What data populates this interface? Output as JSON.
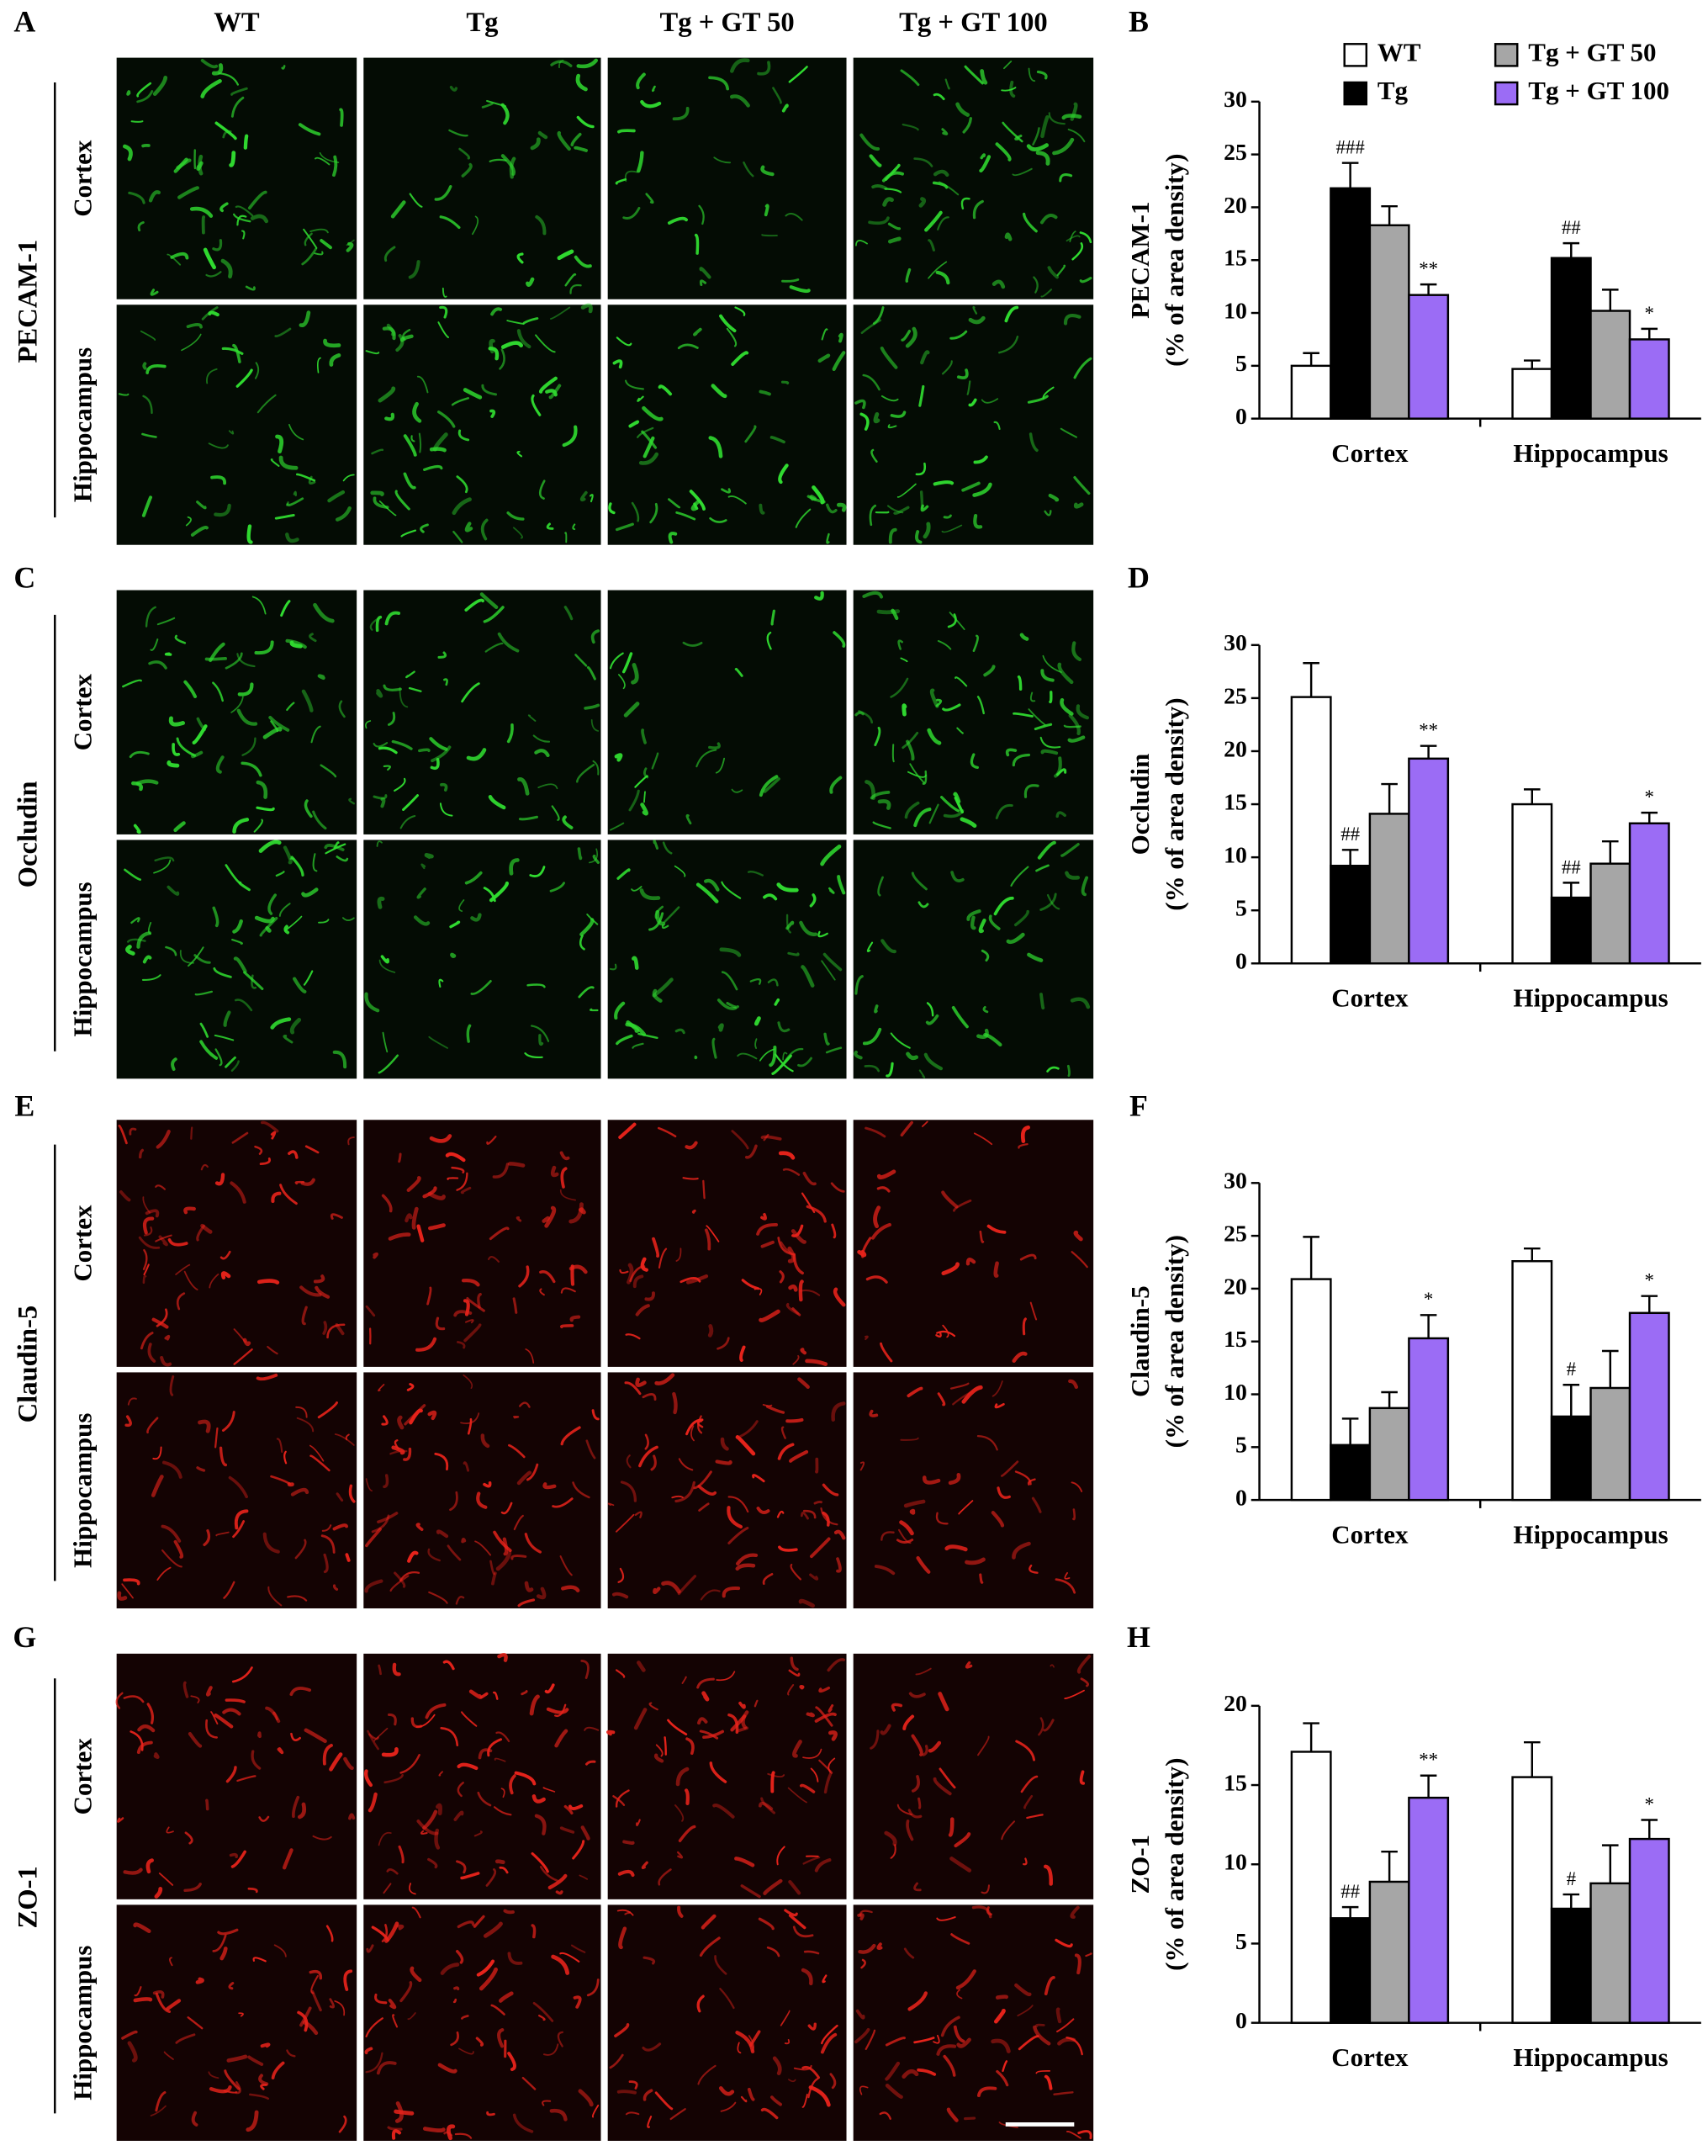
{
  "panel_labels": [
    "A",
    "B",
    "C",
    "D",
    "E",
    "F",
    "G",
    "H"
  ],
  "column_headers": [
    "WT",
    "Tg",
    "Tg + GT 50",
    "Tg + GT 100"
  ],
  "image_rows": [
    {
      "marker": "PECAM-1",
      "regions": [
        "Cortex",
        "Hippocampus"
      ]
    },
    {
      "marker": "Occludin",
      "regions": [
        "Cortex",
        "Hippocampus"
      ]
    },
    {
      "marker": "Claudin-5",
      "regions": [
        "Cortex",
        "Hippocampus"
      ]
    },
    {
      "marker": "ZO-1",
      "regions": [
        "Cortex",
        "Hippocampus"
      ]
    }
  ],
  "chart_data": [
    {
      "type": "bar",
      "ylabel": [
        "PECAM-1",
        "(% of area density)"
      ],
      "categories": [
        "Cortex",
        "Hippocampus"
      ],
      "ylim": [
        0,
        30
      ],
      "yticks": [
        0,
        5,
        10,
        15,
        20,
        25,
        30
      ],
      "legend": "top-right",
      "series": [
        {
          "name": "WT",
          "color": "#ffffff",
          "values": [
            5.0,
            4.7
          ],
          "errors": [
            1.2,
            0.8
          ]
        },
        {
          "name": "Tg",
          "color": "#000000",
          "values": [
            21.8,
            15.2
          ],
          "errors": [
            2.4,
            1.4
          ],
          "significance": [
            "###",
            "##"
          ]
        },
        {
          "name": "Tg + GT 50",
          "color": "#a6a6a6",
          "values": [
            18.3,
            10.2
          ],
          "errors": [
            1.8,
            2.0
          ]
        },
        {
          "name": "Tg + GT 100",
          "color": "#9b6cf5",
          "values": [
            11.7,
            7.5
          ],
          "errors": [
            1.0,
            1.0
          ],
          "significance": [
            "**",
            "*"
          ]
        }
      ]
    },
    {
      "type": "bar",
      "ylabel": [
        "Occludin",
        "(% of area density)"
      ],
      "categories": [
        "Cortex",
        "Hippocampus"
      ],
      "ylim": [
        0,
        30
      ],
      "yticks": [
        0,
        5,
        10,
        15,
        20,
        25,
        30
      ],
      "series": [
        {
          "color": "#ffffff",
          "values": [
            25.1,
            15.0
          ],
          "errors": [
            3.2,
            1.4
          ]
        },
        {
          "color": "#000000",
          "values": [
            9.2,
            6.2
          ],
          "errors": [
            1.5,
            1.4
          ],
          "significance": [
            "##",
            "##"
          ]
        },
        {
          "color": "#a6a6a6",
          "values": [
            14.1,
            9.4
          ],
          "errors": [
            2.8,
            2.1
          ]
        },
        {
          "color": "#9b6cf5",
          "values": [
            19.3,
            13.2
          ],
          "errors": [
            1.2,
            1.0
          ],
          "significance": [
            "**",
            "*"
          ]
        }
      ]
    },
    {
      "type": "bar",
      "ylabel": [
        "Claudin-5",
        "(% of area density)"
      ],
      "categories": [
        "Cortex",
        "Hippocampus"
      ],
      "ylim": [
        0,
        30
      ],
      "yticks": [
        0,
        5,
        10,
        15,
        20,
        25,
        30
      ],
      "series": [
        {
          "color": "#ffffff",
          "values": [
            20.9,
            22.6
          ],
          "errors": [
            4.0,
            1.2
          ]
        },
        {
          "color": "#000000",
          "values": [
            5.2,
            7.9
          ],
          "errors": [
            2.5,
            3.0
          ],
          "significance": [
            null,
            "#"
          ]
        },
        {
          "color": "#a6a6a6",
          "values": [
            8.7,
            10.6
          ],
          "errors": [
            1.5,
            3.5
          ]
        },
        {
          "color": "#9b6cf5",
          "values": [
            15.3,
            17.7
          ],
          "errors": [
            2.2,
            1.6
          ],
          "significance": [
            "*",
            "*"
          ]
        }
      ]
    },
    {
      "type": "bar",
      "ylabel": [
        "ZO-1",
        "(% of area density)"
      ],
      "categories": [
        "Cortex",
        "Hippocampus"
      ],
      "ylim": [
        0,
        20
      ],
      "yticks": [
        0,
        5,
        10,
        15,
        20
      ],
      "series": [
        {
          "color": "#ffffff",
          "values": [
            17.1,
            15.5
          ],
          "errors": [
            1.8,
            2.2
          ]
        },
        {
          "color": "#000000",
          "values": [
            6.6,
            7.2
          ],
          "errors": [
            0.7,
            0.9
          ],
          "significance": [
            "##",
            "#"
          ]
        },
        {
          "color": "#a6a6a6",
          "values": [
            8.9,
            8.8
          ],
          "errors": [
            1.9,
            2.4
          ]
        },
        {
          "color": "#9b6cf5",
          "values": [
            14.2,
            11.6
          ],
          "errors": [
            1.4,
            1.2
          ],
          "significance": [
            "**",
            "*"
          ]
        }
      ]
    }
  ]
}
